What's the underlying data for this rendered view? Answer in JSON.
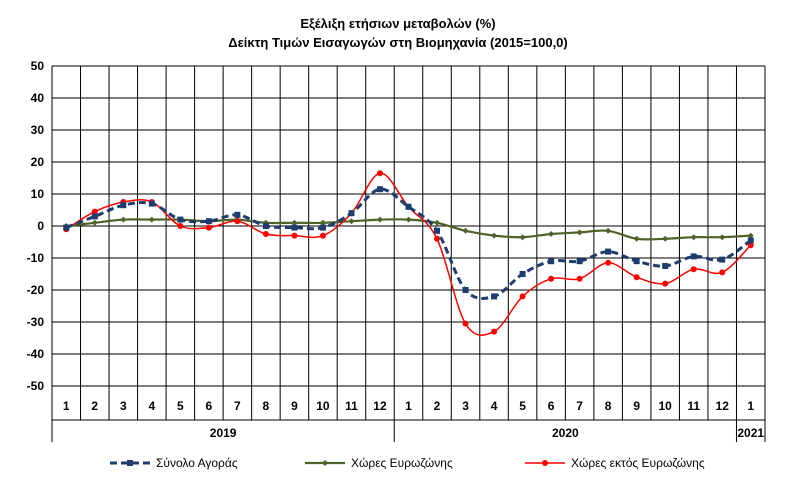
{
  "chart_data": {
    "type": "line",
    "title": "Εξέλιξη ετήσιων μεταβολών (%)",
    "subtitle": "Δείκτη Τιμών Εισαγωγών στη Βιομηχανία (2015=100,0)",
    "xlabel": "",
    "ylabel": "",
    "ylim": [
      -50,
      50
    ],
    "yticks": [
      50,
      40,
      30,
      20,
      10,
      0,
      -10,
      -20,
      -30,
      -40,
      -50
    ],
    "categories": [
      "1",
      "2",
      "3",
      "4",
      "5",
      "6",
      "7",
      "8",
      "9",
      "10",
      "11",
      "12",
      "1",
      "2",
      "3",
      "4",
      "5",
      "6",
      "7",
      "8",
      "9",
      "10",
      "11",
      "12",
      "1"
    ],
    "year_groups": [
      {
        "label": "2019",
        "start": 0,
        "end": 11
      },
      {
        "label": "2020",
        "start": 12,
        "end": 23
      },
      {
        "label": "2021",
        "start": 24,
        "end": 24
      }
    ],
    "grid": true,
    "legend_position": "bottom",
    "series": [
      {
        "name": "Σύνολο Αγοράς",
        "color": "#1f3c6e",
        "style": "dashed-square",
        "values": [
          -0.5,
          3,
          6.5,
          7,
          2,
          1.5,
          3.5,
          0,
          -0.5,
          -0.5,
          4,
          11.5,
          6,
          -1.5,
          -20,
          -22,
          -15,
          -11,
          -11,
          -8,
          -11,
          -12.5,
          -9.5,
          -10.5,
          -4.5
        ]
      },
      {
        "name": "Χώρες Ευρωζώνης",
        "color": "#4f6228",
        "style": "solid-diamond",
        "values": [
          0,
          1,
          2,
          2,
          2,
          1.5,
          2,
          1,
          1,
          1,
          1.5,
          2,
          2,
          1,
          -1.5,
          -3,
          -3.5,
          -2.5,
          -2,
          -1.5,
          -4,
          -4,
          -3.5,
          -3.5,
          -3
        ]
      },
      {
        "name": "Χώρες εκτός Ευρωζώνης",
        "color": "#ff0000",
        "style": "solid-circle",
        "values": [
          -1,
          4.5,
          7.5,
          7.5,
          0,
          -0.5,
          1.5,
          -2.5,
          -3,
          -3,
          4,
          16.5,
          6,
          -4,
          -30.5,
          -33,
          -22,
          -16.5,
          -16.5,
          -11.5,
          -16,
          -18,
          -13.5,
          -14.5,
          -6
        ]
      }
    ]
  }
}
